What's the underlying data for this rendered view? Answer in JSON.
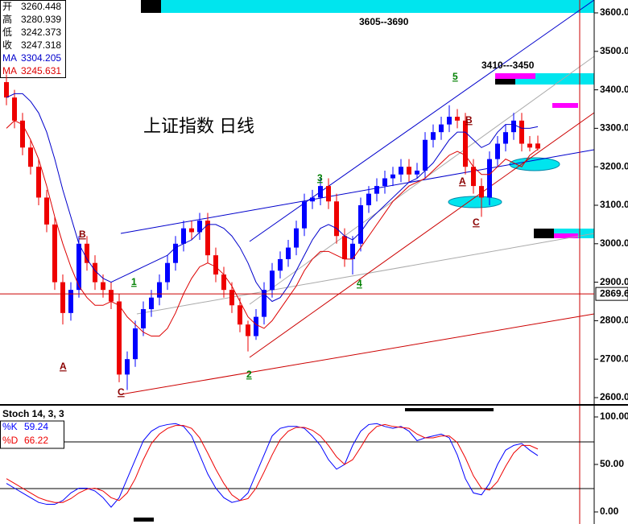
{
  "chart_data": [
    {
      "type": "candlestick",
      "title": "上证指数 日线",
      "ohlc_labels": [
        "开",
        "高",
        "低",
        "收"
      ],
      "open": [
        3420,
        3380,
        3320,
        3250,
        3200,
        3120,
        3050,
        2900,
        2820,
        2880,
        3000,
        2950,
        2900,
        2880,
        2850,
        2660,
        2700,
        2780,
        2830,
        2860,
        2900,
        2950,
        3000,
        3040,
        3030,
        3060,
        2970,
        2920,
        2880,
        2840,
        2790,
        2760,
        2810,
        2880,
        2930,
        2960,
        2990,
        3040,
        3110,
        3120,
        3150,
        3110,
        3020,
        2960,
        3000,
        3100,
        3130,
        3150,
        3170,
        3180,
        3200,
        3180,
        3190,
        3270,
        3290,
        3310,
        3330,
        3320,
        3200,
        3150,
        3120,
        3220,
        3260,
        3290,
        3320,
        3260,
        3260.448
      ],
      "high": [
        3440,
        3400,
        3340,
        3270,
        3220,
        3140,
        3070,
        2920,
        2900,
        3020,
        3020,
        2970,
        2920,
        2900,
        2870,
        2720,
        2800,
        2850,
        2880,
        2920,
        2970,
        3020,
        3060,
        3060,
        3080,
        3080,
        2990,
        2940,
        2900,
        2860,
        2800,
        2830,
        2900,
        2950,
        2980,
        3010,
        3060,
        3130,
        3140,
        3170,
        3170,
        3130,
        3040,
        3020,
        3120,
        3150,
        3170,
        3190,
        3200,
        3220,
        3220,
        3210,
        3290,
        3310,
        3330,
        3360,
        3350,
        3340,
        3220,
        3170,
        3240,
        3280,
        3310,
        3340,
        3340,
        3280,
        3280.939
      ],
      "low": [
        3360,
        3300,
        3230,
        3180,
        3100,
        3030,
        2880,
        2790,
        2800,
        2860,
        2930,
        2880,
        2860,
        2830,
        2640,
        2620,
        2680,
        2760,
        2810,
        2840,
        2880,
        2930,
        2980,
        3010,
        3010,
        2950,
        2900,
        2860,
        2820,
        2770,
        2720,
        2750,
        2790,
        2860,
        2910,
        2940,
        2970,
        3020,
        3090,
        3100,
        3090,
        3000,
        2940,
        2920,
        2980,
        3080,
        3110,
        3130,
        3150,
        3160,
        3160,
        3170,
        3170,
        3250,
        3270,
        3290,
        3300,
        3180,
        3130,
        3070,
        3100,
        3200,
        3240,
        3270,
        3240,
        3240,
        3242.373
      ],
      "close": [
        3380,
        3320,
        3250,
        3200,
        3120,
        3050,
        2900,
        2820,
        2880,
        3000,
        2950,
        2900,
        2880,
        2850,
        2660,
        2700,
        2780,
        2830,
        2860,
        2900,
        2950,
        3000,
        3040,
        3030,
        3060,
        2970,
        2920,
        2880,
        2840,
        2790,
        2760,
        2810,
        2880,
        2930,
        2960,
        2990,
        3040,
        3110,
        3120,
        3150,
        3110,
        3020,
        2960,
        3000,
        3100,
        3130,
        3150,
        3170,
        3180,
        3200,
        3180,
        3190,
        3270,
        3290,
        3310,
        3330,
        3320,
        3200,
        3150,
        3120,
        3220,
        3260,
        3290,
        3320,
        3260,
        3250,
        3247.318
      ],
      "up_color": "#0000ff",
      "down_color": "#ee0000",
      "overlays": [
        {
          "name": "MA",
          "color": "#0000cc",
          "values": [
            3380,
            3390,
            3390,
            3370,
            3340,
            3290,
            3220,
            3140,
            3070,
            3000,
            2960,
            2930,
            2910,
            2900,
            2910,
            2920,
            2930,
            2940,
            2950,
            2960,
            2970,
            2990,
            3000,
            3010,
            3030,
            3050,
            3050,
            3040,
            3020,
            2990,
            2950,
            2900,
            2870,
            2850,
            2860,
            2890,
            2930,
            2970,
            3010,
            3040,
            3050,
            3040,
            3020,
            3010,
            3030,
            3060,
            3080,
            3100,
            3120,
            3140,
            3160,
            3170,
            3190,
            3210,
            3240,
            3270,
            3290,
            3290,
            3270,
            3250,
            3260,
            3290,
            3310,
            3310,
            3300,
            3300,
            3304.205
          ]
        },
        {
          "name": "MA",
          "color": "#dd0000",
          "values": [
            3300,
            3320,
            3310,
            3270,
            3220,
            3150,
            3070,
            3000,
            2940,
            2890,
            2860,
            2840,
            2840,
            2850,
            2840,
            2810,
            2790,
            2770,
            2760,
            2760,
            2780,
            2820,
            2870,
            2910,
            2940,
            2950,
            2940,
            2920,
            2890,
            2850,
            2810,
            2790,
            2780,
            2800,
            2830,
            2860,
            2890,
            2930,
            2960,
            2980,
            2980,
            2970,
            2960,
            2960,
            2990,
            3020,
            3050,
            3080,
            3110,
            3130,
            3150,
            3160,
            3170,
            3190,
            3210,
            3230,
            3240,
            3230,
            3200,
            3180,
            3180,
            3200,
            3220,
            3210,
            3200,
            3230,
            3245.631
          ]
        }
      ],
      "ylim": [
        2600,
        3600
      ],
      "yticks": [
        {
          "value": 3600,
          "label": "3600.00"
        },
        {
          "value": 3500,
          "label": "3500.00"
        },
        {
          "value": 3400,
          "label": "3400.00"
        },
        {
          "value": 3300,
          "label": "3300.00"
        },
        {
          "value": 3200,
          "label": "3200.00"
        },
        {
          "value": 3100,
          "label": "3100.00"
        },
        {
          "value": 3000,
          "label": "3000.00"
        },
        {
          "value": 2900,
          "label": "2900.00"
        },
        {
          "value": 2800,
          "label": "2800.00"
        },
        {
          "value": 2700,
          "label": "2700.00"
        },
        {
          "value": 2600,
          "label": "2600.00"
        }
      ],
      "crosshair": 2869.6,
      "annotations": [
        {
          "text": "3605--3690",
          "color": "#000000"
        },
        {
          "text": "3410---3450",
          "color": "#000000"
        },
        {
          "text": "A",
          "color": "#8b0000"
        },
        {
          "text": "B",
          "color": "#8b0000"
        },
        {
          "text": "C",
          "color": "#8b0000"
        },
        {
          "text": "1",
          "color": "#008000"
        },
        {
          "text": "2",
          "color": "#008000"
        },
        {
          "text": "3",
          "color": "#008000"
        },
        {
          "text": "4",
          "color": "#008000"
        },
        {
          "text": "5",
          "color": "#008000"
        },
        {
          "text": "A",
          "color": "#8b0000"
        },
        {
          "text": "B",
          "color": "#8b0000"
        },
        {
          "text": "C",
          "color": "#8b0000"
        }
      ]
    },
    {
      "type": "line",
      "title": "Stoch 14, 3, 3",
      "series": [
        {
          "name": "%K",
          "color": "#0000ff",
          "values": [
            30,
            25,
            20,
            15,
            10,
            8,
            8,
            12,
            20,
            25,
            25,
            22,
            15,
            5,
            15,
            35,
            55,
            75,
            85,
            90,
            92,
            93,
            90,
            80,
            60,
            40,
            25,
            15,
            10,
            12,
            20,
            40,
            60,
            80,
            88,
            90,
            90,
            88,
            80,
            70,
            55,
            45,
            50,
            70,
            85,
            92,
            93,
            90,
            88,
            90,
            85,
            75,
            78,
            80,
            82,
            78,
            60,
            35,
            20,
            18,
            30,
            50,
            65,
            70,
            72,
            65,
            59.24
          ]
        },
        {
          "name": "%D",
          "color": "#ee0000",
          "values": [
            35,
            30,
            25,
            20,
            15,
            12,
            10,
            10,
            14,
            20,
            24,
            25,
            22,
            15,
            12,
            20,
            35,
            55,
            72,
            82,
            88,
            91,
            91,
            88,
            78,
            62,
            45,
            30,
            18,
            12,
            14,
            25,
            42,
            60,
            76,
            85,
            89,
            89,
            86,
            80,
            70,
            58,
            50,
            55,
            68,
            82,
            90,
            92,
            90,
            89,
            88,
            82,
            78,
            78,
            80,
            80,
            73,
            57,
            38,
            25,
            23,
            32,
            48,
            62,
            70,
            70,
            66.22
          ]
        }
      ],
      "ylim": [
        0,
        100
      ],
      "yticks": [
        {
          "value": 100,
          "label": "100.00"
        },
        {
          "value": 50,
          "label": "50.00"
        },
        {
          "value": 0,
          "label": "0.00"
        }
      ]
    }
  ]
}
